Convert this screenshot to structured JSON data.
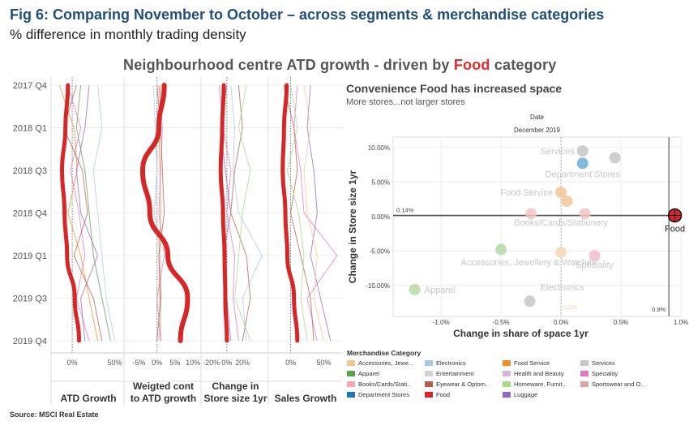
{
  "figure": {
    "title": "Fig 6: Comparing November to October – across segments & merchandise categories",
    "subtitle": "% difference in monthly trading density",
    "chart_title_prefix": "Neighbourhood centre ATD growth - driven by ",
    "chart_title_highlight": "Food",
    "chart_title_suffix": " category",
    "source": "Source: MSCI Real Estate"
  },
  "colors": {
    "food": "#d62728",
    "grid": "#e6e6e6",
    "title_blue": "#1f4e79"
  },
  "chart_data": [
    {
      "type": "line",
      "layout": "small-multiples",
      "y_categories": [
        "2017 Q4",
        "2018 Q1",
        "2018 Q3",
        "2018 Q4",
        "2019 Q1",
        "2019 Q3",
        "2019 Q4"
      ],
      "panels": [
        {
          "name": "ATD Growth",
          "ticks": [
            {
              "v": 0,
              "label": "0%"
            },
            {
              "v": 0.5,
              "label": "50%"
            }
          ],
          "xlim": [
            -0.22,
            0.6
          ],
          "food": [
            -0.05,
            -0.08,
            -0.12,
            -0.09,
            -0.06,
            0.03,
            0.08
          ],
          "others": [
            [
              0.1,
              0.05,
              0.15,
              0.2,
              0.25,
              0.35,
              0.45
            ],
            [
              -0.15,
              0.02,
              0.06,
              -0.05,
              0.1,
              0.2,
              0.3
            ],
            [
              0.3,
              0.35,
              0.25,
              0.3,
              0.35,
              0.4,
              0.5
            ],
            [
              -0.05,
              0.1,
              -0.02,
              0.08,
              0.15,
              0.05,
              0.2
            ],
            [
              0.05,
              -0.1,
              0.12,
              0.18,
              0.02,
              0.25,
              0.35
            ],
            [
              0.2,
              0.15,
              0.05,
              0.1,
              0.3,
              0.1,
              0.15
            ]
          ]
        },
        {
          "name": "Weigted cont to ATD growth",
          "ticks": [
            {
              "v": -0.05,
              "label": "-5%"
            },
            {
              "v": 0,
              "label": "0%"
            },
            {
              "v": 0.05,
              "label": "5%"
            },
            {
              "v": 0.1,
              "label": "10%"
            }
          ],
          "xlim": [
            -0.085,
            0.12
          ],
          "food": [
            0.02,
            0.005,
            -0.04,
            -0.02,
            0.03,
            0.085,
            0.065
          ],
          "others": [
            [
              0.01,
              0.005,
              0.008,
              0.01,
              0.005,
              0.008,
              0.01
            ],
            [
              -0.01,
              -0.005,
              0.0,
              -0.008,
              0.01,
              0.012,
              0.005
            ],
            [
              0.005,
              0.015,
              0.01,
              0.005,
              0.02,
              0.0,
              0.01
            ],
            [
              0.0,
              0.01,
              0.015,
              0.02,
              0.005,
              0.01,
              0.0
            ]
          ]
        },
        {
          "name": "Change in Store size 1yr",
          "ticks": [
            {
              "v": -0.2,
              "label": "-20%"
            },
            {
              "v": 0,
              "label": "0%"
            },
            {
              "v": 0.2,
              "label": "20%"
            }
          ],
          "xlim": [
            -0.3,
            0.52
          ],
          "food": [
            -0.04,
            -0.06,
            -0.08,
            -0.05,
            -0.03,
            -0.02,
            0.0
          ],
          "others": [
            [
              0.05,
              0.1,
              0.08,
              0.15,
              0.45,
              0.2,
              0.25
            ],
            [
              -0.1,
              -0.05,
              0.05,
              0.0,
              0.1,
              0.08,
              0.15
            ],
            [
              0.15,
              0.2,
              0.1,
              0.05,
              0.25,
              0.3,
              0.2
            ],
            [
              0.0,
              -0.08,
              -0.02,
              0.05,
              -0.05,
              0.0,
              0.05
            ],
            [
              0.25,
              0.15,
              0.3,
              0.2,
              0.15,
              0.1,
              0.3
            ]
          ]
        },
        {
          "name": "Sales Growth",
          "ticks": [
            {
              "v": 0,
              "label": "0%"
            },
            {
              "v": 0.5,
              "label": "50%"
            }
          ],
          "xlim": [
            -0.3,
            0.75
          ],
          "food": [
            -0.06,
            -0.1,
            -0.12,
            -0.08,
            -0.05,
            0.05,
            0.1
          ],
          "others": [
            [
              0.1,
              0.05,
              0.15,
              0.2,
              0.7,
              0.25,
              0.4
            ],
            [
              -0.1,
              0.05,
              0.1,
              0.0,
              0.15,
              0.3,
              0.35
            ],
            [
              0.3,
              0.25,
              0.35,
              0.4,
              0.3,
              0.45,
              0.6
            ],
            [
              0.0,
              0.1,
              -0.05,
              0.12,
              0.2,
              0.15,
              0.25
            ],
            [
              0.2,
              0.3,
              0.2,
              0.25,
              0.4,
              0.35,
              0.5
            ]
          ]
        }
      ]
    },
    {
      "type": "scatter",
      "title": "Convenience Food has increased space",
      "subtitle": "More stores...not larger stores",
      "filter_label": "Date",
      "filter_value": "December 2019",
      "xlabel": "Change in share of space 1yr",
      "ylabel": "Change in Store size 1yr",
      "xlim": [
        -1.4,
        1.0
      ],
      "ylim": [
        -0.145,
        0.115
      ],
      "x_ticks": [
        {
          "v": -1.0,
          "label": "-1.0%"
        },
        {
          "v": -0.5,
          "label": "-0.5%"
        },
        {
          "v": 0.0,
          "label": "0.0%"
        },
        {
          "v": 0.5,
          "label": "0.5%"
        },
        {
          "v": 1.0,
          "label": "1.0%"
        }
      ],
      "y_ticks": [
        {
          "v": 0.1,
          "label": "10.00%"
        },
        {
          "v": 0.05,
          "label": "5.00%"
        },
        {
          "v": 0.0,
          "label": "0.00%"
        },
        {
          "v": -0.05,
          "label": "-5.00%"
        },
        {
          "v": -0.1,
          "label": "-10.00%"
        }
      ],
      "ref_x": 0.9,
      "ref_x_label": "0.9%",
      "ref_y": 0.0014,
      "ref_y_label": "0.14%",
      "extra_label": "0.0%",
      "points": [
        {
          "label": "Services",
          "x": 0.18,
          "y": 0.095,
          "color": "#c7c7c7"
        },
        {
          "label": "",
          "x": 0.45,
          "y": 0.085,
          "color": "#c7c7c7"
        },
        {
          "label": "",
          "x": 0.18,
          "y": 0.077,
          "color": "#6baed6"
        },
        {
          "label": "Department Stores",
          "x": 0.0,
          "y": 0.0,
          "color": "",
          "label_only": true,
          "lx": 0.18,
          "ly": 0.057
        },
        {
          "label": "Food Service",
          "x": 0.0,
          "y": 0.035,
          "color": "#f5c49a"
        },
        {
          "label": "",
          "x": 0.05,
          "y": 0.022,
          "color": "#f5c49a"
        },
        {
          "label": "",
          "x": -0.25,
          "y": 0.004,
          "color": "#f2c4c4"
        },
        {
          "label": "",
          "x": 0.2,
          "y": 0.004,
          "color": "#f2c4c4"
        },
        {
          "label": "Books/Cards/Stationery",
          "x": 0.0,
          "y": 0.0,
          "color": "",
          "label_only": true,
          "lx": 0.0,
          "ly": -0.013
        },
        {
          "label": "Food",
          "x": 0.95,
          "y": 0.0014,
          "color": "#d62728",
          "highlight": true
        },
        {
          "label": "",
          "x": -0.5,
          "y": -0.048,
          "color": "#b5d9a8"
        },
        {
          "label": "Accessories, Jewellery & Watches",
          "x": 0.0,
          "y": -0.052,
          "color": "#f5d9b5"
        },
        {
          "label": "Speciality",
          "x": 0.28,
          "y": -0.057,
          "color": "#f0bccd"
        },
        {
          "label": "Apparel",
          "x": -1.22,
          "y": -0.106,
          "color": "#b5d9a8"
        },
        {
          "label": "Electronics",
          "x": -0.26,
          "y": -0.123,
          "color": "#c7c7c7"
        }
      ]
    }
  ],
  "legend": {
    "title": "Merchandise Category",
    "items": [
      {
        "label": "Accessories, Jewe..",
        "color": "#f2c690"
      },
      {
        "label": "Electronics",
        "color": "#aec7e8"
      },
      {
        "label": "Food Service",
        "color": "#f28e2b"
      },
      {
        "label": "Services",
        "color": "#c7c7c7"
      },
      {
        "label": "Apparel",
        "color": "#59a14f"
      },
      {
        "label": "Entertainment",
        "color": "#d3d3d3"
      },
      {
        "label": "Health and Beauty",
        "color": "#d4b5e0"
      },
      {
        "label": "Speciality",
        "color": "#e377c2"
      },
      {
        "label": "Books/Cards/Stati..",
        "color": "#f4a9a8"
      },
      {
        "label": "Eyewear & Optom..",
        "color": "#b55d4a"
      },
      {
        "label": "Homeware, Furnit..",
        "color": "#a6d98a"
      },
      {
        "label": "Sportswear and O..",
        "color": "#d9a5a5"
      },
      {
        "label": "Department Stores",
        "color": "#1f77b4"
      },
      {
        "label": "Food",
        "color": "#d62728"
      },
      {
        "label": "Luggage",
        "color": "#9467bd"
      }
    ]
  }
}
